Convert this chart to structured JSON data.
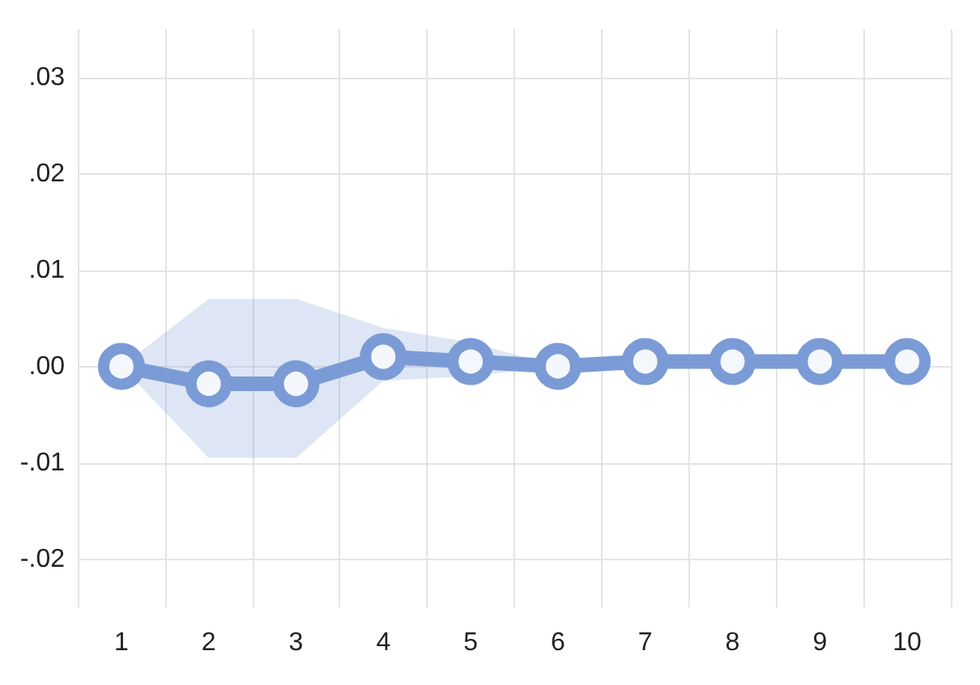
{
  "chart_data": {
    "type": "line",
    "categories": [
      "1",
      "2",
      "3",
      "4",
      "5",
      "6",
      "7",
      "8",
      "9",
      "10"
    ],
    "series": [
      {
        "color": "#7b9bd6",
        "values": [
          0,
          -0.0018,
          -0.0018,
          0.001,
          0.0005,
          0,
          0.0005,
          0.0005,
          0.0005,
          0.0005
        ],
        "lower": [
          0,
          -0.0095,
          -0.0095,
          -0.0015,
          -0.001,
          0,
          null,
          null,
          null,
          null
        ],
        "upper": [
          0,
          0.007,
          0.007,
          0.004,
          0.0025,
          0,
          null,
          null,
          null,
          null
        ]
      }
    ],
    "ylim": [
      -0.025,
      0.035
    ],
    "yticks": [
      {
        "value": -0.02,
        "label": "-.02"
      },
      {
        "value": -0.01,
        "label": "-.01"
      },
      {
        "value": 0,
        "label": ".00"
      },
      {
        "value": 0.01,
        "label": ".01"
      },
      {
        "value": 0.02,
        "label": ".02"
      },
      {
        "value": 0.03,
        "label": ".03"
      }
    ],
    "grid": true,
    "marker": "circle",
    "line_style": "solid"
  }
}
